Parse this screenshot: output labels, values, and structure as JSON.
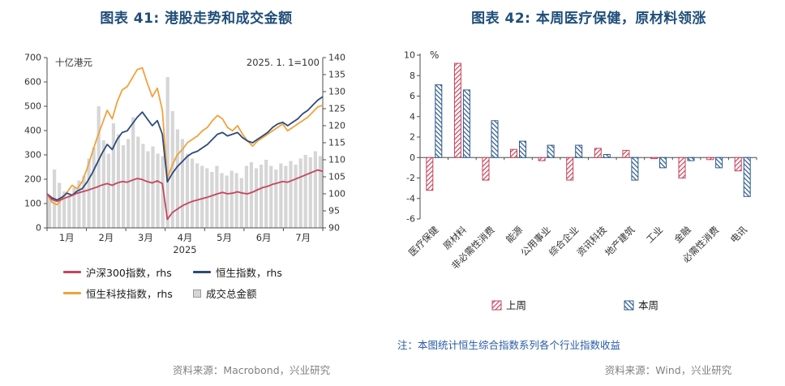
{
  "page": {
    "background": "#ffffff"
  },
  "chart_data": [
    {
      "type": "line+bar",
      "title": "图表 41: 港股走势和成交金额",
      "left_axis_unit": "十亿港元",
      "right_axis_note": "2025. 1. 1=100",
      "left_ylim": [
        0,
        700
      ],
      "left_step": 100,
      "right_ylim": [
        90,
        140
      ],
      "right_step": 5,
      "x_months": [
        "1月",
        "2月",
        "3月",
        "4月",
        "5月",
        "6月",
        "7月"
      ],
      "x_year": "2025",
      "lines": [
        {
          "name": "沪深300指数，rhs",
          "color": "#c5455c",
          "axis": "right",
          "values": [
            100,
            98.3,
            97.8,
            98.4,
            99,
            99.5,
            100.2,
            100.6,
            101,
            101.5,
            102,
            102.6,
            103,
            102.5,
            103.2,
            103.6,
            103.4,
            104,
            104.5,
            104.2,
            103.6,
            103.2,
            103.8,
            103,
            92.5,
            94.5,
            95.5,
            96.5,
            97.2,
            97.8,
            98.2,
            98.6,
            99,
            99.5,
            100,
            100.4,
            100,
            100.2,
            100.6,
            100.2,
            100,
            100.5,
            101.2,
            101.8,
            102.2,
            102.8,
            103.2,
            103.6,
            103.4,
            104,
            104.6,
            105.2,
            105.8,
            106.4,
            107,
            106.6
          ]
        },
        {
          "name": "恒生指数，rhs",
          "color": "#2e4a7c",
          "axis": "right",
          "values": [
            100,
            98.8,
            98.2,
            99,
            100.2,
            99.6,
            100.8,
            101.5,
            103.5,
            106,
            109,
            112,
            114.5,
            113,
            116,
            118,
            118.5,
            120.5,
            122.5,
            124,
            122,
            120,
            121.5,
            117.5,
            103.5,
            106,
            108,
            109.5,
            111,
            112,
            112.5,
            113.5,
            114.5,
            116,
            117.5,
            118,
            117,
            117.5,
            118,
            116.5,
            115.5,
            115,
            116,
            117,
            118,
            119.5,
            120.5,
            121,
            120,
            121,
            122,
            123.5,
            124.5,
            126,
            127.5,
            128.5
          ]
        },
        {
          "name": "恒生科技指数，rhs",
          "color": "#f0a23c",
          "axis": "right",
          "values": [
            100,
            97.5,
            96.8,
            98.5,
            100.5,
            102.5,
            101.5,
            103.5,
            107.5,
            112,
            116.5,
            120.5,
            124.5,
            122,
            127,
            130.5,
            131.5,
            134,
            136.5,
            137,
            132.5,
            128.5,
            131,
            124.5,
            104.5,
            108.5,
            111.5,
            113,
            115,
            116,
            117,
            118.5,
            119.5,
            121.5,
            123,
            122,
            119.5,
            118.5,
            120,
            117.5,
            115.5,
            114,
            115.5,
            116.5,
            117.5,
            118.5,
            119.5,
            120.5,
            118.5,
            119.5,
            120.5,
            121.5,
            122.5,
            124,
            125.5,
            126
          ]
        }
      ],
      "volume": {
        "name": "成交总金额",
        "color": "#d6d6d6",
        "axis": "left",
        "values": [
          130,
          240,
          185,
          150,
          135,
          165,
          195,
          215,
          285,
          330,
          500,
          360,
          305,
          430,
          385,
          340,
          365,
          455,
          375,
          345,
          315,
          335,
          305,
          295,
          620,
          480,
          405,
          365,
          305,
          285,
          265,
          255,
          245,
          230,
          255,
          225,
          215,
          235,
          225,
          205,
          255,
          270,
          245,
          260,
          280,
          255,
          240,
          265,
          255,
          275,
          260,
          285,
          300,
          290,
          315,
          295
        ]
      },
      "source": "资料来源：Macrobond，兴业研究"
    },
    {
      "type": "bar",
      "title": "图表 42: 本周医疗保健，原材料领涨",
      "ylabel": "%",
      "ylim": [
        -6,
        10
      ],
      "y_step": 2,
      "categories": [
        "医疗保健",
        "原材料",
        "非必需性消费",
        "能源",
        "公用事业",
        "综合企业",
        "资讯科技",
        "地产建筑",
        "工业",
        "金融",
        "必需性消费",
        "电讯"
      ],
      "series": [
        {
          "name": "上周",
          "color": "#c5455c",
          "values": [
            -3.2,
            9.2,
            -2.2,
            0.8,
            -0.3,
            -2.2,
            0.9,
            0.7,
            -0.1,
            -2.0,
            -0.2,
            -1.3
          ]
        },
        {
          "name": "本周",
          "color": "#2e5a8c",
          "values": [
            7.1,
            6.6,
            3.6,
            1.6,
            1.2,
            1.2,
            0.3,
            -2.2,
            -1.0,
            -0.3,
            -1.0,
            -3.8
          ]
        }
      ],
      "note": "注：本图统计恒生综合指数系列各个行业指数收益",
      "source": "资料来源：Wind，兴业研究"
    }
  ]
}
